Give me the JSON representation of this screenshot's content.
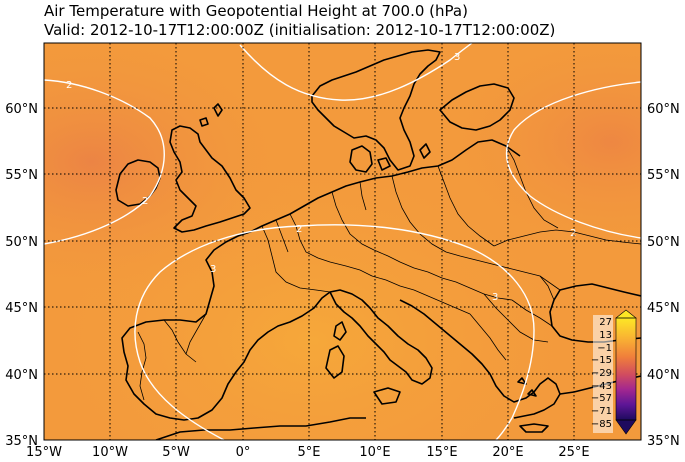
{
  "title": {
    "line1": "Air Temperature with Geopotential Height at 700.0 (hPa)",
    "line2": "Valid: 2012-10-17T12:00:00Z (initialisation: 2012-10-17T12:00:00Z)"
  },
  "axes": {
    "lon_labels": [
      "15°W",
      "10°W",
      "5°W",
      "0°",
      "5°E",
      "10°E",
      "15°E",
      "20°E",
      "25°E"
    ],
    "lat_labels": [
      "60°N",
      "55°N",
      "50°N",
      "45°N",
      "40°N",
      "35°N"
    ]
  },
  "contour_labels": [
    "2",
    "3",
    "2",
    "3",
    "2",
    "2",
    "3"
  ],
  "colorbar": {
    "labels": [
      "27",
      "13",
      "−1",
      "−15",
      "−29",
      "−43",
      "−57",
      "−71",
      "−85"
    ],
    "colors": [
      "#fde725",
      "#f9b233",
      "#f48a3a",
      "#e2604b",
      "#c53d6f",
      "#9c2796",
      "#6a1b9a",
      "#3b0f70",
      "#1e0a5e"
    ]
  },
  "colors": {
    "field_base": "#f39a3c",
    "field_light": "#f5a73d",
    "field_dark": "#ef8a40",
    "land_border": "#000000",
    "contour": "#ffffff"
  }
}
